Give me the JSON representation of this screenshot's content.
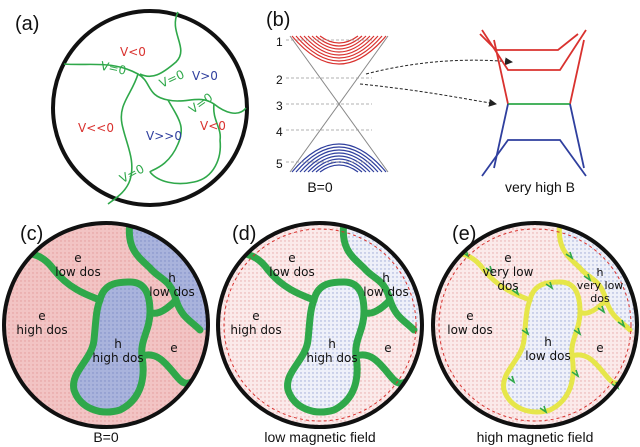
{
  "colors": {
    "green": "#2fa84a",
    "red": "#d9322f",
    "blue": "#2f3f9e",
    "yellow": "#e6e64a",
    "pinkFill": "#f2c4c4",
    "blueFill": "#a9b3dc",
    "pinkDots": "#f7dede",
    "blueDots": "#d9def0"
  },
  "panel_a": {
    "label": "(a)",
    "regions": [
      {
        "text": "V<0",
        "color": "red"
      },
      {
        "text": "V>0",
        "color": "blue"
      },
      {
        "text": "V<<0",
        "color": "red"
      },
      {
        "text": "V>>0",
        "color": "blue"
      },
      {
        "text": "V<0",
        "color": "red"
      }
    ],
    "lines": [
      "V=0",
      "V=0",
      "V=0",
      "V=0"
    ]
  },
  "panel_b": {
    "label": "(b)",
    "levels": [
      "1",
      "2",
      "3",
      "4",
      "5"
    ],
    "caption_left": "B=0",
    "caption_right": "very high B"
  },
  "panel_c": {
    "label": "(c)",
    "caption": "B=0",
    "regions": [
      {
        "line1": "e",
        "line2": "low dos"
      },
      {
        "line1": "h",
        "line2": "low dos"
      },
      {
        "line1": "e",
        "line2": "high dos"
      },
      {
        "line1": "h",
        "line2": "high dos"
      },
      {
        "line1": "e",
        "line2": ""
      }
    ]
  },
  "panel_d": {
    "label": "(d)",
    "caption": "low magnetic field",
    "regions": [
      {
        "line1": "e",
        "line2": "low dos"
      },
      {
        "line1": "h",
        "line2": "low dos"
      },
      {
        "line1": "e",
        "line2": "high dos"
      },
      {
        "line1": "h",
        "line2": "high dos"
      },
      {
        "line1": "e",
        "line2": ""
      }
    ]
  },
  "panel_e": {
    "label": "(e)",
    "caption": "high magnetic field",
    "regions": [
      {
        "line1": "e",
        "line2": "very low",
        "line3": "dos"
      },
      {
        "line1": "h",
        "line2": "very low",
        "line3": "dos"
      },
      {
        "line1": "e",
        "line2": "low dos",
        "line3": ""
      },
      {
        "line1": "h",
        "line2": "low dos",
        "line3": ""
      },
      {
        "line1": "e",
        "line2": "",
        "line3": ""
      }
    ]
  }
}
